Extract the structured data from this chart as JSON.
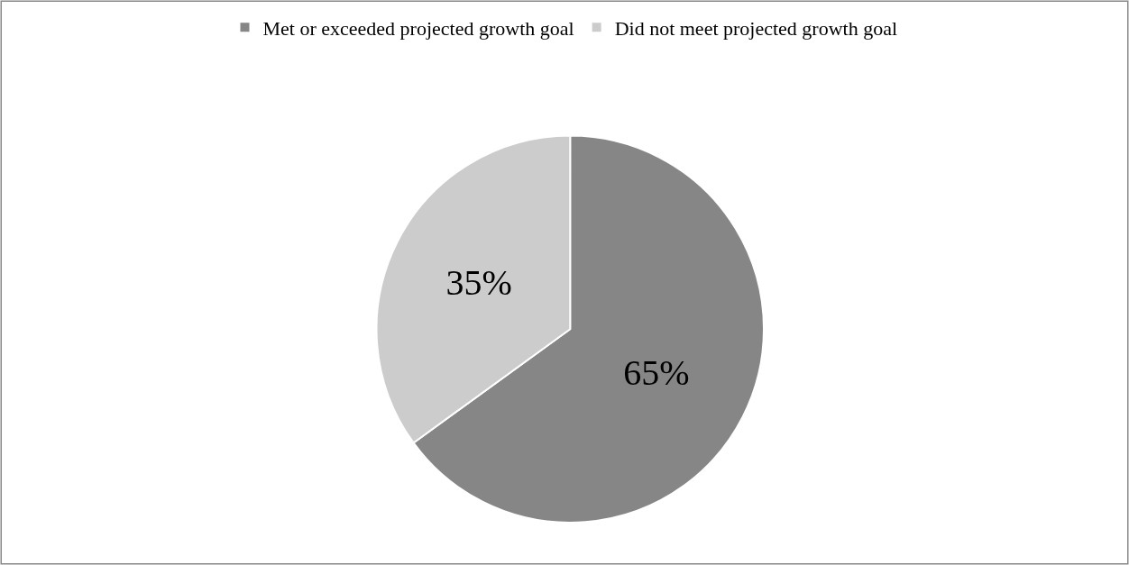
{
  "chart_data": {
    "type": "pie",
    "categories": [
      "Met or exceeded projected growth goal",
      "Did not meet projected growth goal"
    ],
    "values": [
      65,
      35
    ],
    "colors": [
      "#868686",
      "#cccccc"
    ],
    "value_labels": [
      "65%",
      "35%"
    ],
    "legend": "top"
  }
}
